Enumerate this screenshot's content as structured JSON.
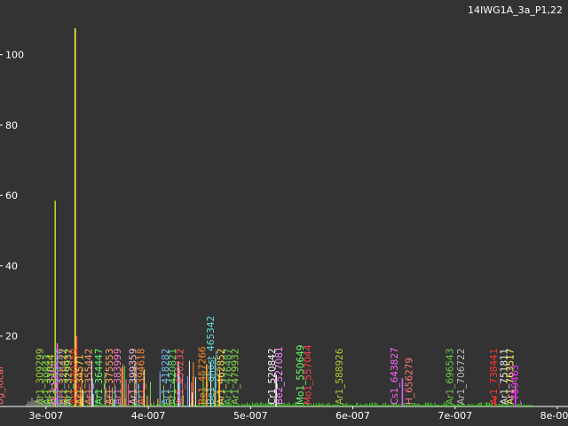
{
  "title": "14IWG1A_3a_P1,22",
  "colors": {
    "background": "#333333",
    "axis": "#ffffff",
    "noise_green": "#44dd22",
    "baseline": "#aaaaaa"
  },
  "chart_data": {
    "type": "line",
    "title": "14IWG1A_3a_P1,22",
    "xlabel": "",
    "ylabel": "",
    "xlim": [
      2.55e-07,
      8e-07
    ],
    "ylim": [
      0,
      110
    ],
    "grid": false,
    "x_ticks": [
      {
        "value": 3e-07,
        "label": "3e-007"
      },
      {
        "value": 4e-07,
        "label": "4e-007"
      },
      {
        "value": 5e-07,
        "label": "5e-007"
      },
      {
        "value": 6e-07,
        "label": "6e-007"
      },
      {
        "value": 7e-07,
        "label": "7e-007"
      },
      {
        "value": 8e-07,
        "label": "8e-007"
      }
    ],
    "y_ticks": [
      {
        "value": 20,
        "label": "20"
      },
      {
        "value": 40,
        "label": "40"
      },
      {
        "value": 60,
        "label": "60"
      },
      {
        "value": 80,
        "label": "80"
      },
      {
        "value": 100,
        "label": "100"
      }
    ],
    "peaks": [
      {
        "x": 3.09e-07,
        "y": 58.5,
        "color": "#aadd33"
      },
      {
        "x": 3.285e-07,
        "y": 107.5,
        "color": "#ffee44"
      },
      {
        "x": 3.11e-07,
        "y": 18,
        "color": "#ff66aa"
      },
      {
        "x": 3.3e-07,
        "y": 20,
        "color": "#ff4444"
      },
      {
        "x": 4.57e-07,
        "y": 12,
        "color": "#ffaa33"
      },
      {
        "x": 4.655e-07,
        "y": 14,
        "color": "#66ccdd"
      },
      {
        "x": 5.25e-07,
        "y": 9,
        "color": "#ffffff"
      },
      {
        "x": 6.485e-07,
        "y": 8,
        "color": "#cc66ff"
      },
      {
        "x": 7.39e-07,
        "y": 3,
        "color": "#ff3333"
      },
      {
        "x": 7.59e-07,
        "y": 5,
        "color": "#ff33ff"
      }
    ],
    "annotations": [
      {
        "text": "bg_local",
        "x": 2.58e-07,
        "color": "#ff6666"
      },
      {
        "text": "Ar1_309299",
        "x": 2.97e-07,
        "color": "#99cc33"
      },
      {
        "text": "Ar1_30843",
        "x": 3.04e-07,
        "color": "#66dd44"
      },
      {
        "text": "Ar1_31044",
        "x": 3.08e-07,
        "color": "#ccdd33"
      },
      {
        "text": "H_31272",
        "x": 3.12e-07,
        "color": "#ff66ff"
      },
      {
        "text": "Ar1_324256",
        "x": 3.16e-07,
        "color": "#66aaff"
      },
      {
        "text": "Ar1_326422",
        "x": 3.2e-07,
        "color": "#ff9933"
      },
      {
        "text": "Ar1_329932",
        "x": 3.25e-07,
        "color": "#aaff66"
      },
      {
        "text": "Ar1_330259",
        "x": 3.3e-07,
        "color": "#ff3333"
      },
      {
        "text": "Ar1_34571",
        "x": 3.36e-07,
        "color": "#ffcc33"
      },
      {
        "text": "Ar1_355442",
        "x": 3.45e-07,
        "color": "#ff9966"
      },
      {
        "text": "Ar1_364447",
        "x": 3.55e-07,
        "color": "#66ff66"
      },
      {
        "text": "Ar1_375553",
        "x": 3.65e-07,
        "color": "#ffaa55"
      },
      {
        "text": "Ar1_383999",
        "x": 3.73e-07,
        "color": "#ff77cc"
      },
      {
        "text": "Ar1_399359",
        "x": 3.88e-07,
        "color": "#ffbbdd"
      },
      {
        "text": "Ar1_394618",
        "x": 3.96e-07,
        "color": "#ff8833"
      },
      {
        "text": "Ar1_418282",
        "x": 4.2e-07,
        "color": "#77bbff"
      },
      {
        "text": "Ar1_420821",
        "x": 4.27e-07,
        "color": "#66dd66"
      },
      {
        "text": "Ar1_430232",
        "x": 4.34e-07,
        "color": "#ff5555"
      },
      {
        "text": "Be1_457266",
        "x": 4.56e-07,
        "color": "#ff8822"
      },
      {
        "text": "Be1_ghost_465342",
        "x": 4.64e-07,
        "color": "#66dddd"
      },
      {
        "text": "Ar1_462852",
        "x": 4.74e-07,
        "color": "#ffdd55"
      },
      {
        "text": "Ar1_476487",
        "x": 4.81e-07,
        "color": "#66cc55"
      },
      {
        "text": "Ar1_479932",
        "x": 4.88e-07,
        "color": "#88dd44"
      },
      {
        "text": "Cr1_520842",
        "x": 5.24e-07,
        "color": "#ffffff"
      },
      {
        "text": "Be2_527081",
        "x": 5.31e-07,
        "color": "#ff88ff"
      },
      {
        "text": "Mo1_550649",
        "x": 5.52e-07,
        "color": "#66ff66"
      },
      {
        "text": "Mo1_557044",
        "x": 5.59e-07,
        "color": "#ff4444"
      },
      {
        "text": "Ar1_588926",
        "x": 5.9e-07,
        "color": "#aacc33"
      },
      {
        "text": "Cs1_643827",
        "x": 6.44e-07,
        "color": "#ff66ff"
      },
      {
        "text": "H_656279",
        "x": 6.58e-07,
        "color": "#ff7777"
      },
      {
        "text": "Ar1_696543",
        "x": 6.98e-07,
        "color": "#66cc44"
      },
      {
        "text": "Ar1_706722",
        "x": 7.09e-07,
        "color": "#bbbbbb"
      },
      {
        "text": "Ar1_738441",
        "x": 7.41e-07,
        "color": "#ff3333"
      },
      {
        "text": "Ar1_751811",
        "x": 7.51e-07,
        "color": "#eeeeee"
      },
      {
        "text": "Ar1_763517",
        "x": 7.57e-07,
        "color": "#ffff66"
      },
      {
        "text": "_759463",
        "x": 7.62e-07,
        "color": "#ff33ff"
      }
    ]
  }
}
